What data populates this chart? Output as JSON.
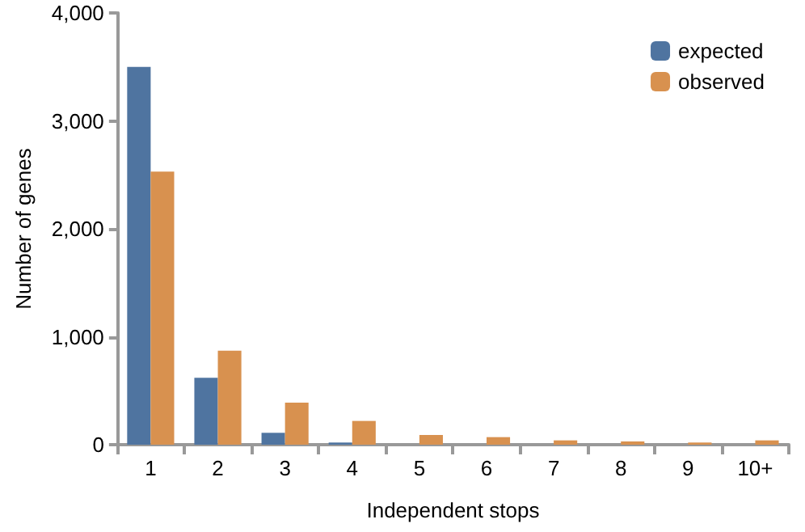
{
  "chart_data": {
    "type": "bar",
    "xlabel": "Independent stops",
    "ylabel": "Number of genes",
    "categories": [
      "1",
      "2",
      "3",
      "4",
      "5",
      "6",
      "7",
      "8",
      "9",
      "10+"
    ],
    "series": [
      {
        "name": "expected",
        "color": "#4f74a0",
        "values": [
          3500,
          620,
          110,
          20,
          0,
          0,
          0,
          0,
          0,
          0
        ]
      },
      {
        "name": "observed",
        "color": "#d8914f",
        "values": [
          2530,
          870,
          390,
          220,
          90,
          70,
          40,
          30,
          20,
          40
        ]
      }
    ],
    "ylim": [
      0,
      4000
    ],
    "yticks": [
      0,
      {
        "value": 1000,
        "label": "1,000"
      },
      {
        "value": 2000,
        "label": "2,000"
      },
      {
        "value": 3000,
        "label": "3,000"
      },
      {
        "value": 4000,
        "label": "4,000"
      }
    ],
    "grid": false,
    "legend": "top right"
  }
}
